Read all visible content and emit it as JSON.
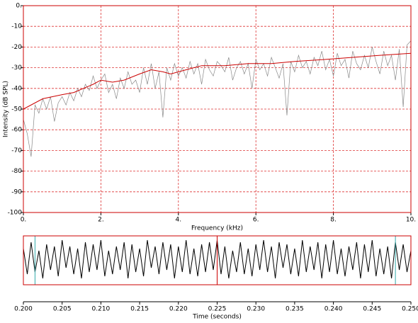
{
  "chart_data": [
    {
      "type": "line",
      "xlabel": "Frequency (kHz)",
      "ylabel": "Intensity (dB SPL)",
      "xlim": [
        0,
        10
      ],
      "ylim": [
        -100,
        0
      ],
      "xticks": [
        {
          "value": 0,
          "label": "0."
        },
        {
          "value": 2,
          "label": "2."
        },
        {
          "value": 4,
          "label": "4."
        },
        {
          "value": 6,
          "label": "6."
        },
        {
          "value": 8,
          "label": "8."
        },
        {
          "value": 10,
          "label": "10."
        }
      ],
      "yticks": [
        {
          "value": 0,
          "label": "0."
        },
        -10,
        -20,
        -30,
        -40,
        -50,
        -60,
        -70,
        -80,
        -90,
        -100
      ],
      "grid": true,
      "frame_color": "#cc0000",
      "grid_color": "#dd3333",
      "series": [
        {
          "color": "#888888",
          "x": [
            0,
            0.1,
            0.2,
            0.3,
            0.4,
            0.5,
            0.6,
            0.7,
            0.8,
            0.9,
            1,
            1.1,
            1.2,
            1.3,
            1.4,
            1.5,
            1.6,
            1.7,
            1.8,
            1.9,
            2,
            2.1,
            2.2,
            2.3,
            2.4,
            2.5,
            2.6,
            2.7,
            2.8,
            2.9,
            3,
            3.1,
            3.2,
            3.3,
            3.4,
            3.5,
            3.6,
            3.7,
            3.8,
            3.9,
            4,
            4.1,
            4.2,
            4.3,
            4.4,
            4.5,
            4.6,
            4.7,
            4.8,
            4.9,
            5,
            5.1,
            5.2,
            5.3,
            5.4,
            5.5,
            5.6,
            5.7,
            5.8,
            5.9,
            6,
            6.1,
            6.2,
            6.3,
            6.4,
            6.5,
            6.6,
            6.7,
            6.8,
            6.9,
            7,
            7.1,
            7.2,
            7.3,
            7.4,
            7.5,
            7.6,
            7.7,
            7.8,
            7.9,
            8,
            8.1,
            8.2,
            8.3,
            8.4,
            8.5,
            8.6,
            8.7,
            8.8,
            8.9,
            9,
            9.1,
            9.2,
            9.3,
            9.4,
            9.5,
            9.6,
            9.7,
            9.8,
            9.9,
            10
          ],
          "values": [
            -55,
            -62,
            -73,
            -48,
            -52,
            -45,
            -50,
            -44,
            -56,
            -47,
            -44,
            -48,
            -42,
            -46,
            -40,
            -44,
            -38,
            -41,
            -34,
            -40,
            -36,
            -33,
            -42,
            -38,
            -45,
            -35,
            -40,
            -32,
            -38,
            -36,
            -42,
            -30,
            -38,
            -28,
            -40,
            -32,
            -54,
            -30,
            -36,
            -28,
            -34,
            -30,
            -35,
            -27,
            -33,
            -28,
            -38,
            -26,
            -31,
            -34,
            -27,
            -29,
            -32,
            -25,
            -36,
            -30,
            -27,
            -33,
            -28,
            -40,
            -26,
            -31,
            -28,
            -34,
            -25,
            -30,
            -35,
            -28,
            -53,
            -27,
            -32,
            -24,
            -30,
            -27,
            -33,
            -25,
            -29,
            -22,
            -31,
            -26,
            -34,
            -23,
            -29,
            -26,
            -35,
            -22,
            -28,
            -31,
            -24,
            -30,
            -20,
            -27,
            -33,
            -22,
            -29,
            -24,
            -36,
            -21,
            -49,
            -19,
            -17
          ]
        },
        {
          "color": "#cc0000",
          "x": [
            0,
            0.5,
            1,
            1.3,
            1.8,
            2,
            2.3,
            2.6,
            3,
            3.3,
            3.6,
            3.8,
            4.2,
            4.6,
            5.2,
            5.8,
            6.4,
            7,
            7.8,
            8.5,
            9.2,
            10
          ],
          "values": [
            -50,
            -45,
            -43,
            -42,
            -38,
            -36,
            -37,
            -36,
            -33,
            -31,
            -32,
            -33,
            -31,
            -29,
            -29,
            -28,
            -28,
            -27,
            -26,
            -25,
            -24,
            -23
          ]
        }
      ]
    },
    {
      "type": "line",
      "xlabel": "Time (seconds)",
      "xlim": [
        0.2,
        0.25
      ],
      "ylim": [
        -1,
        1
      ],
      "xticks": [
        {
          "value": 0.2,
          "label": "0.200"
        },
        {
          "value": 0.205,
          "label": "0.205"
        },
        {
          "value": 0.21,
          "label": "0.210"
        },
        {
          "value": 0.215,
          "label": "0.215"
        },
        {
          "value": 0.22,
          "label": "0.220"
        },
        {
          "value": 0.225,
          "label": "0.225"
        },
        {
          "value": 0.23,
          "label": "0.230"
        },
        {
          "value": 0.235,
          "label": "0.235"
        },
        {
          "value": 0.24,
          "label": "0.240"
        },
        {
          "value": 0.245,
          "label": "0.245"
        },
        {
          "value": 0.25,
          "label": "0.250"
        }
      ],
      "frame_color": "#cc0000",
      "cursors": [
        {
          "x": 0.2015,
          "color": "#33aaaa"
        },
        {
          "x": 0.225,
          "color": "#cc0000"
        },
        {
          "x": 0.248,
          "color": "#33aaaa"
        }
      ],
      "series": [
        {
          "color": "#000000",
          "x": [
            0.2,
            0.2005,
            0.201,
            0.2015,
            0.202,
            0.2025,
            0.203,
            0.2035,
            0.204,
            0.2045,
            0.205,
            0.2055,
            0.206,
            0.2065,
            0.207,
            0.2075,
            0.208,
            0.2085,
            0.209,
            0.2095,
            0.21,
            0.2105,
            0.211,
            0.2115,
            0.212,
            0.2125,
            0.213,
            0.2135,
            0.214,
            0.2145,
            0.215,
            0.2155,
            0.216,
            0.2165,
            0.217,
            0.2175,
            0.218,
            0.2185,
            0.219,
            0.2195,
            0.22,
            0.2205,
            0.221,
            0.2215,
            0.222,
            0.2225,
            0.223,
            0.2235,
            0.224,
            0.2245,
            0.225,
            0.2255,
            0.226,
            0.2265,
            0.227,
            0.2275,
            0.228,
            0.2285,
            0.229,
            0.2295,
            0.23,
            0.2305,
            0.231,
            0.2315,
            0.232,
            0.2325,
            0.233,
            0.2335,
            0.234,
            0.2345,
            0.235,
            0.2355,
            0.236,
            0.2365,
            0.237,
            0.2375,
            0.238,
            0.2385,
            0.239,
            0.2395,
            0.24,
            0.2405,
            0.241,
            0.2415,
            0.242,
            0.2425,
            0.243,
            0.2435,
            0.244,
            0.2445,
            0.245,
            0.2455,
            0.246,
            0.2465,
            0.247,
            0.2475,
            0.248,
            0.2485,
            0.249,
            0.2495,
            0.25
          ],
          "values": [
            0.5,
            -0.7,
            0.8,
            -0.6,
            0.4,
            -0.9,
            0.7,
            -0.5,
            0.6,
            -0.8,
            0.9,
            -0.4,
            0.6,
            -0.7,
            0.5,
            -0.9,
            0.8,
            -0.6,
            0.7,
            -0.5,
            0.9,
            -0.8,
            0.4,
            -0.7,
            0.6,
            -0.5,
            0.8,
            -0.9,
            0.7,
            -0.6,
            0.5,
            -0.8,
            0.9,
            -0.4,
            0.6,
            -0.7,
            0.8,
            -0.5,
            0.7,
            -0.9,
            0.6,
            -0.6,
            0.9,
            -0.7,
            0.5,
            -0.8,
            0.7,
            -0.6,
            0.8,
            -0.5,
            0.9,
            -0.7,
            0.6,
            -0.9,
            0.4,
            -0.6,
            0.8,
            -0.7,
            0.5,
            -0.8,
            0.7,
            -0.5,
            0.9,
            -0.6,
            0.6,
            -0.9,
            0.8,
            -0.4,
            0.7,
            -0.7,
            0.5,
            -0.8,
            0.9,
            -0.6,
            0.6,
            -0.5,
            0.8,
            -0.9,
            0.7,
            -0.6,
            0.9,
            -0.7,
            0.5,
            -0.8,
            0.6,
            -0.5,
            0.8,
            -0.9,
            0.7,
            -0.6,
            0.9,
            -0.8,
            0.5,
            -0.7,
            0.6,
            -0.9,
            0.8,
            -0.5,
            0.7,
            -0.6,
            0.4
          ]
        }
      ]
    }
  ]
}
